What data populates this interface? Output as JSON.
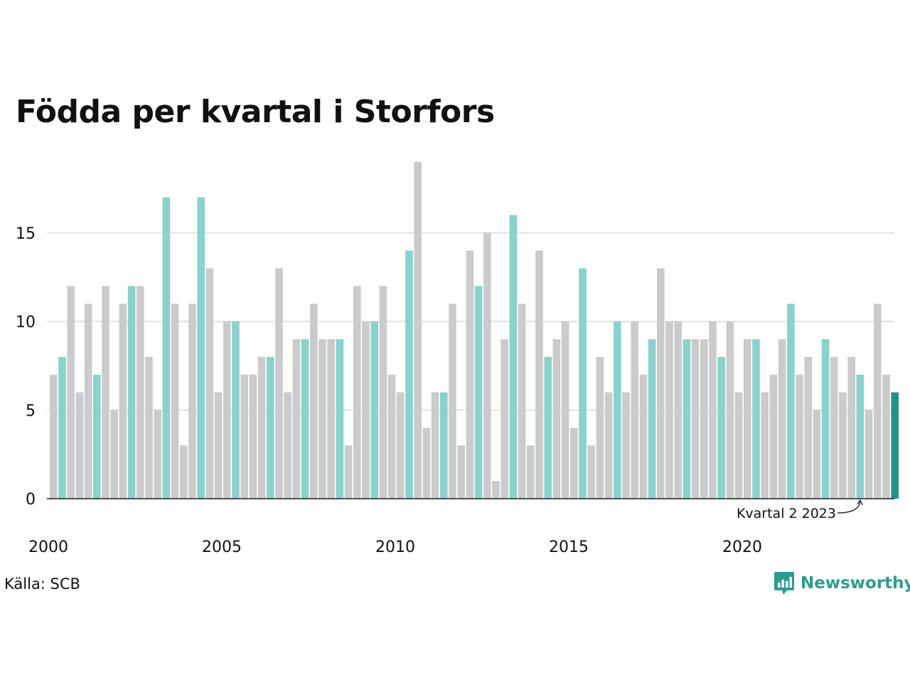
{
  "chart_data": {
    "type": "bar",
    "title": "Födda per kvartal i Storfors",
    "xlabel": "",
    "ylabel": "",
    "ylim": [
      0,
      19
    ],
    "yticks": [
      0,
      5,
      10,
      15
    ],
    "grid": true,
    "x_tick_labels": [
      "2000",
      "2005",
      "2010",
      "2015",
      "2020"
    ],
    "x_tick_label_positions_years": [
      2000,
      2005,
      2010,
      2015,
      2020
    ],
    "first_period": {
      "year": 2000,
      "quarter": 1
    },
    "quarters": [
      "2000-Q1",
      "2000-Q2",
      "2000-Q3",
      "2000-Q4",
      "2001-Q1",
      "2001-Q2",
      "2001-Q3",
      "2001-Q4",
      "2002-Q1",
      "2002-Q2",
      "2002-Q3",
      "2002-Q4",
      "2003-Q1",
      "2003-Q2",
      "2003-Q3",
      "2003-Q4",
      "2004-Q1",
      "2004-Q2",
      "2004-Q3",
      "2004-Q4",
      "2005-Q1",
      "2005-Q2",
      "2005-Q3",
      "2005-Q4",
      "2006-Q1",
      "2006-Q2",
      "2006-Q3",
      "2006-Q4",
      "2007-Q1",
      "2007-Q2",
      "2007-Q3",
      "2007-Q4",
      "2008-Q1",
      "2008-Q2",
      "2008-Q3",
      "2008-Q4",
      "2009-Q1",
      "2009-Q2",
      "2009-Q3",
      "2009-Q4",
      "2010-Q1",
      "2010-Q2",
      "2010-Q3",
      "2010-Q4",
      "2011-Q1",
      "2011-Q2",
      "2011-Q3",
      "2011-Q4",
      "2012-Q1",
      "2012-Q2",
      "2012-Q3",
      "2012-Q4",
      "2013-Q1",
      "2013-Q2",
      "2013-Q3",
      "2013-Q4",
      "2014-Q1",
      "2014-Q2",
      "2014-Q3",
      "2014-Q4",
      "2015-Q1",
      "2015-Q2",
      "2015-Q3",
      "2015-Q4",
      "2016-Q1",
      "2016-Q2",
      "2016-Q3",
      "2016-Q4",
      "2017-Q1",
      "2017-Q2",
      "2017-Q3",
      "2017-Q4",
      "2018-Q1",
      "2018-Q2",
      "2018-Q3",
      "2018-Q4",
      "2019-Q1",
      "2019-Q2",
      "2019-Q3",
      "2019-Q4",
      "2020-Q1",
      "2020-Q2",
      "2020-Q3",
      "2020-Q4",
      "2021-Q1",
      "2021-Q2",
      "2021-Q3",
      "2021-Q4",
      "2022-Q1",
      "2022-Q2",
      "2022-Q3",
      "2022-Q4",
      "2023-Q1",
      "2023-Q2",
      "2023-Q3",
      "2023-Q4",
      "2024-Q1",
      "2024-Q2"
    ],
    "values": [
      7,
      8,
      12,
      6,
      11,
      7,
      12,
      5,
      11,
      12,
      12,
      8,
      5,
      17,
      11,
      3,
      11,
      17,
      13,
      6,
      10,
      10,
      7,
      7,
      8,
      8,
      13,
      6,
      9,
      9,
      11,
      9,
      9,
      9,
      3,
      12,
      10,
      10,
      12,
      7,
      6,
      14,
      19,
      4,
      6,
      6,
      11,
      3,
      14,
      12,
      15,
      1,
      9,
      16,
      11,
      3,
      14,
      8,
      9,
      10,
      4,
      13,
      3,
      8,
      6,
      10,
      6,
      10,
      7,
      9,
      13,
      10,
      10,
      9,
      9,
      9,
      10,
      8,
      10,
      6,
      9,
      9,
      6,
      7,
      9,
      11,
      7,
      8,
      5,
      9,
      8,
      6,
      8,
      7,
      5,
      11,
      7,
      6
    ],
    "highlight_quarter": 2,
    "annotation": {
      "text": "Kvartal 2 2023",
      "quarter_index": 93
    },
    "colors": {
      "normal": "#cbcbcb",
      "highlight": "#88d3cb",
      "latest": "#1f9488",
      "grid": "#e2e2e2",
      "axis": "#222222"
    }
  },
  "source": "Källa: SCB",
  "brand": {
    "name": "Newsworthy",
    "logo_icon": "bar-chart-speech-icon",
    "color": "#2a9d8f"
  }
}
